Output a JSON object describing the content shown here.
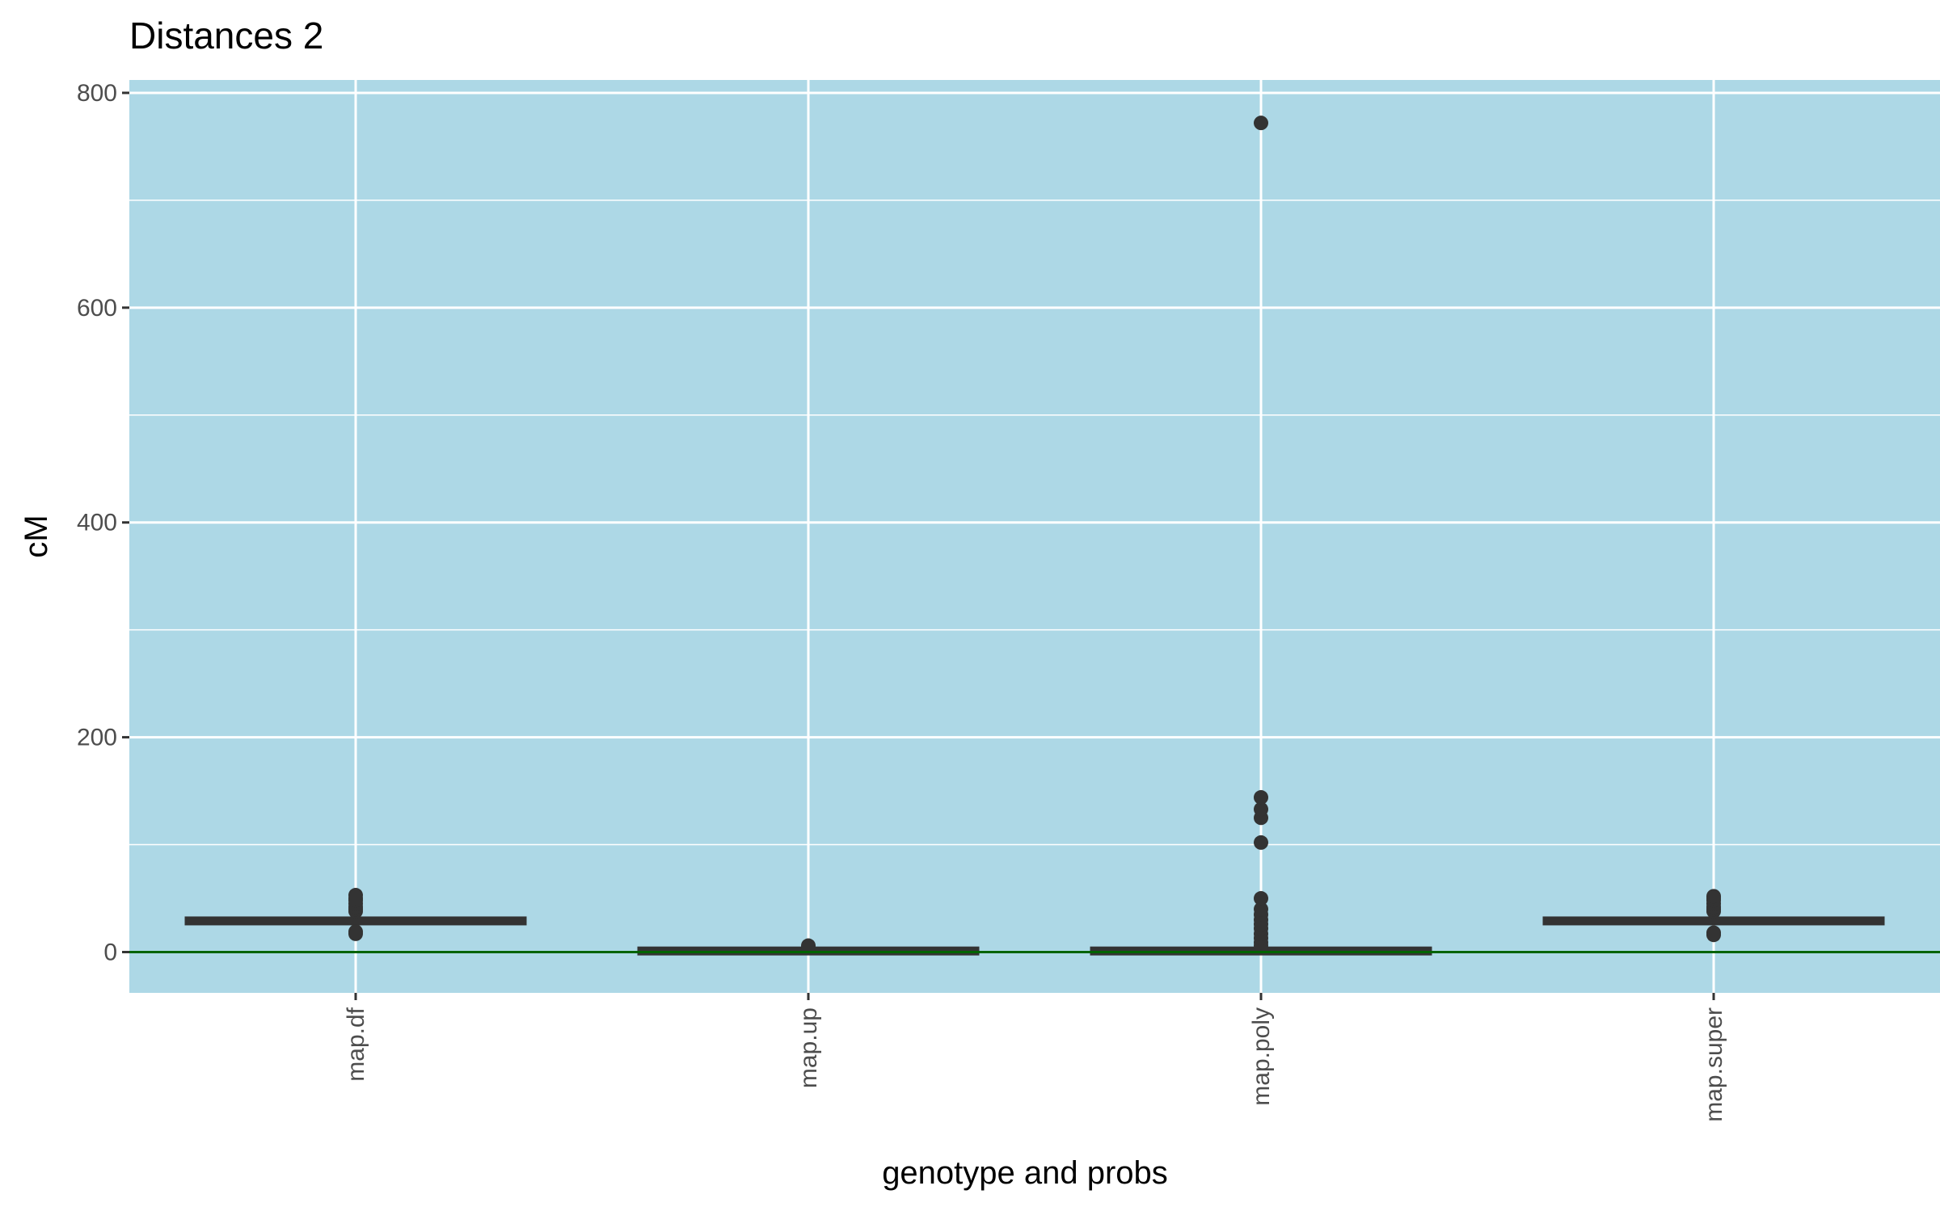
{
  "chart_data": {
    "type": "boxplot",
    "title": "Distances 2",
    "xlabel": "genotype and probs",
    "ylabel": "cM",
    "ylim": [
      -38,
      812
    ],
    "yticks": [
      0,
      200,
      400,
      600,
      800
    ],
    "grid": true,
    "background_color": "#add8e6",
    "reference_line": {
      "y": 0,
      "color": "#006400"
    },
    "categories": [
      "map.df",
      "map.up",
      "map.poly",
      "map.super"
    ],
    "boxes": [
      {
        "category": "map.df",
        "q1": 28,
        "median": 29,
        "q3": 30,
        "whisker_low": 28,
        "whisker_high": 30,
        "outliers": [
          17,
          19,
          38,
          40,
          42,
          45,
          48,
          50,
          53
        ]
      },
      {
        "category": "map.up",
        "q1": 0,
        "median": 1,
        "q3": 2,
        "whisker_low": 0,
        "whisker_high": 2,
        "outliers": [
          4,
          5,
          6
        ]
      },
      {
        "category": "map.poly",
        "q1": 0,
        "median": 1,
        "q3": 2,
        "whisker_low": 0,
        "whisker_high": 3,
        "outliers": [
          6,
          9,
          13,
          17,
          22,
          26,
          30,
          35,
          40,
          50,
          102,
          125,
          133,
          144,
          772
        ]
      },
      {
        "category": "map.super",
        "q1": 28,
        "median": 29,
        "q3": 30,
        "whisker_low": 28,
        "whisker_high": 30,
        "outliers": [
          16,
          18,
          38,
          40,
          42,
          45,
          48,
          50,
          52
        ]
      }
    ]
  }
}
